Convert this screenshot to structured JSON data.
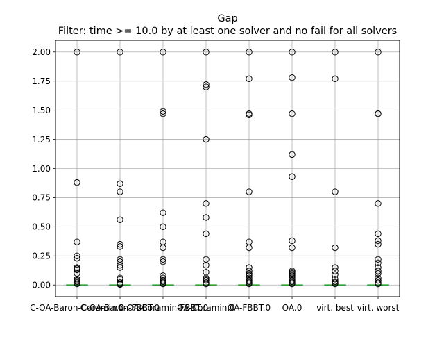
{
  "chart_data": {
    "type": "box",
    "title": "Gap",
    "subtitle": "Filter: time >= 10.0 by at least one solver and no fail for all solvers",
    "xlabel": "",
    "ylabel": "",
    "ylim": [
      -0.1,
      2.1
    ],
    "yticks": [
      0.0,
      0.25,
      0.5,
      0.75,
      1.0,
      1.25,
      1.5,
      1.75,
      2.0
    ],
    "ytick_labels": [
      "0.00",
      "0.25",
      "0.50",
      "0.75",
      "1.00",
      "1.25",
      "1.50",
      "1.75",
      "2.00"
    ],
    "grid": true,
    "legend": "none",
    "colors": {
      "median": "#2ca02c",
      "box": "#1f77b4",
      "flier": "#000000",
      "grid": "#b0b0b0"
    },
    "categories": [
      "C-OA-Baron-Coramin.0",
      "C-OA-Baron-FBBT.0",
      "C-OA-Coramin-FBBT.0",
      "OA-Coramin.0",
      "OA-FBBT.0",
      "OA.0",
      "virt. best",
      "virt. worst"
    ],
    "boxes": [
      {
        "median": 0.0,
        "q1": 0.0,
        "q3": 0.0,
        "whislo": 0.0,
        "whishi": 0.0,
        "fliers": [
          2.0,
          0.88,
          0.37,
          0.25,
          0.23,
          0.15,
          0.14,
          0.13,
          0.1,
          0.05,
          0.04,
          0.03,
          0.02,
          0.01
        ]
      },
      {
        "median": 0.0,
        "q1": 0.0,
        "q3": 0.0,
        "whislo": 0.0,
        "whishi": 0.0,
        "fliers": [
          2.0,
          0.87,
          0.8,
          0.56,
          0.35,
          0.33,
          0.22,
          0.2,
          0.17,
          0.15,
          0.06,
          0.05,
          0.02,
          0.01,
          0.005
        ]
      },
      {
        "median": 0.0,
        "q1": 0.0,
        "q3": 0.0,
        "whislo": 0.0,
        "whishi": 0.0,
        "fliers": [
          2.0,
          1.49,
          1.47,
          0.62,
          0.5,
          0.37,
          0.32,
          0.22,
          0.2,
          0.08,
          0.06,
          0.04,
          0.03,
          0.02,
          0.01
        ]
      },
      {
        "median": 0.0,
        "q1": 0.0,
        "q3": 0.0,
        "whislo": 0.0,
        "whishi": 0.0,
        "fliers": [
          2.0,
          1.72,
          1.7,
          1.25,
          0.7,
          0.58,
          0.44,
          0.22,
          0.17,
          0.11,
          0.06,
          0.05,
          0.04,
          0.02,
          0.01
        ]
      },
      {
        "median": 0.0,
        "q1": 0.0,
        "q3": 0.0,
        "whislo": 0.0,
        "whishi": 0.0,
        "fliers": [
          2.0,
          1.77,
          1.47,
          1.46,
          0.8,
          0.37,
          0.32,
          0.15,
          0.12,
          0.1,
          0.09,
          0.08,
          0.06,
          0.04,
          0.03,
          0.02,
          0.01
        ]
      },
      {
        "median": 0.0,
        "q1": 0.0,
        "q3": 0.0,
        "whislo": 0.0,
        "whishi": 0.0,
        "fliers": [
          2.0,
          1.78,
          1.47,
          1.12,
          0.93,
          0.38,
          0.32,
          0.12,
          0.11,
          0.1,
          0.09,
          0.08,
          0.06,
          0.04,
          0.03,
          0.02,
          0.01
        ]
      },
      {
        "median": 0.0,
        "q1": 0.0,
        "q3": 0.0,
        "whislo": 0.0,
        "whishi": 0.0,
        "fliers": [
          2.0,
          1.77,
          0.8,
          0.32,
          0.15,
          0.12,
          0.09,
          0.05,
          0.03,
          0.02,
          0.01
        ]
      },
      {
        "median": 0.0,
        "q1": 0.0,
        "q3": 0.0,
        "whislo": 0.0,
        "whishi": 0.0,
        "fliers": [
          2.0,
          1.47,
          1.47,
          0.7,
          0.44,
          0.38,
          0.35,
          0.22,
          0.19,
          0.15,
          0.12,
          0.1,
          0.06,
          0.04,
          0.02,
          0.01
        ]
      }
    ]
  }
}
